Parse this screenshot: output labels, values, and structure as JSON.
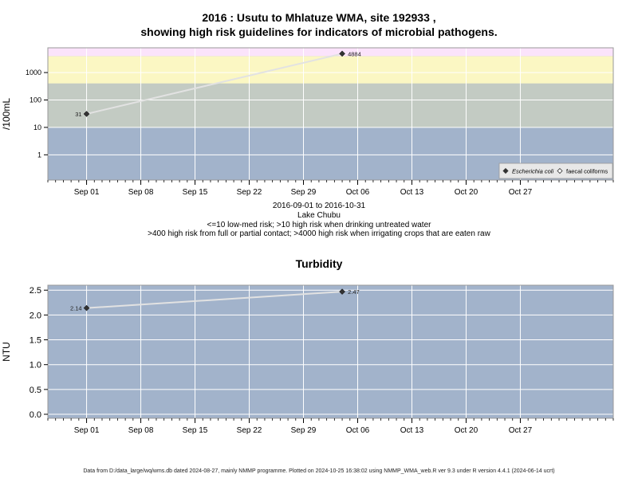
{
  "title_line1": "2016 : Usutu to Mhlatuze WMA, site 192933 ,",
  "title_line2": "showing high risk guidelines for indicators of microbial pathogens.",
  "caption": {
    "date_range": "2016-09-01 to 2016-10-31",
    "site_name": "Lake Chubu",
    "guideline1": "<=10 low-med risk; >10 high risk when drinking untreated water",
    "guideline2": ">400 high risk from full or partial contact; >4000 high risk when irrigating crops that are eaten raw"
  },
  "footer": "Data from D:/data_large/wq/wms.db dated 2024-08-27, mainly NMMP programme. Plotted on 2024-10-25 16:38:02 using NMMP_WMA_web.R ver 9.3 under R version 4.4.1 (2024-06-14 ucrt)",
  "colors": {
    "band_low": "#a2b3cb",
    "band_mid": "#c3cbc3",
    "band_high": "#fbf7c3",
    "band_extreme": "#fbe3fb",
    "line": "#e2e2e2",
    "point": "#333333"
  },
  "chart_data": [
    {
      "type": "line",
      "title": "",
      "xlabel": "",
      "ylabel": "/100mL",
      "y_scale": "log",
      "ylim": [
        0.12,
        8000
      ],
      "x_range": [
        "2016-08-27",
        "2016-11-08"
      ],
      "x_ticks": [
        {
          "date": "2016-09-01",
          "label": "Sep 01"
        },
        {
          "date": "2016-09-08",
          "label": "Sep 08"
        },
        {
          "date": "2016-09-15",
          "label": "Sep 15"
        },
        {
          "date": "2016-09-22",
          "label": "Sep 22"
        },
        {
          "date": "2016-09-29",
          "label": "Sep 29"
        },
        {
          "date": "2016-10-06",
          "label": "Oct 06"
        },
        {
          "date": "2016-10-13",
          "label": "Oct 13"
        },
        {
          "date": "2016-10-20",
          "label": "Oct 20"
        },
        {
          "date": "2016-10-27",
          "label": "Oct 27"
        }
      ],
      "y_ticks": [
        {
          "value": 1,
          "label": "1"
        },
        {
          "value": 10,
          "label": "10"
        },
        {
          "value": 100,
          "label": "100"
        },
        {
          "value": 1000,
          "label": "1000"
        }
      ],
      "risk_bands": [
        {
          "from": 0.12,
          "to": 10,
          "color": "#a2b3cb"
        },
        {
          "from": 10,
          "to": 400,
          "color": "#c3cbc3"
        },
        {
          "from": 400,
          "to": 4000,
          "color": "#fbf7c3"
        },
        {
          "from": 4000,
          "to": 8000,
          "color": "#fbe3fb"
        }
      ],
      "grid": true,
      "legend_position": "bottom-right",
      "series": [
        {
          "name": "Escherichia coli",
          "marker": "filled-diamond",
          "points": [
            {
              "x": "2016-09-01",
              "y": 31,
              "label": "31"
            },
            {
              "x": "2016-10-04",
              "y": 4884,
              "label": "4884"
            }
          ]
        },
        {
          "name": "faecal coliforms",
          "marker": "open-diamond",
          "points": []
        }
      ]
    },
    {
      "type": "line",
      "title": "Turbidity",
      "xlabel": "",
      "ylabel": "NTU",
      "y_scale": "linear",
      "ylim": [
        -0.08,
        2.6
      ],
      "x_range": [
        "2016-08-27",
        "2016-11-08"
      ],
      "x_ticks": [
        {
          "date": "2016-09-01",
          "label": "Sep 01"
        },
        {
          "date": "2016-09-08",
          "label": "Sep 08"
        },
        {
          "date": "2016-09-15",
          "label": "Sep 15"
        },
        {
          "date": "2016-09-22",
          "label": "Sep 22"
        },
        {
          "date": "2016-09-29",
          "label": "Sep 29"
        },
        {
          "date": "2016-10-06",
          "label": "Oct 06"
        },
        {
          "date": "2016-10-13",
          "label": "Oct 13"
        },
        {
          "date": "2016-10-20",
          "label": "Oct 20"
        },
        {
          "date": "2016-10-27",
          "label": "Oct 27"
        }
      ],
      "y_ticks": [
        {
          "value": 0.0,
          "label": "0.0"
        },
        {
          "value": 0.5,
          "label": "0.5"
        },
        {
          "value": 1.0,
          "label": "1.0"
        },
        {
          "value": 1.5,
          "label": "1.5"
        },
        {
          "value": 2.0,
          "label": "2.0"
        },
        {
          "value": 2.5,
          "label": "2.5"
        }
      ],
      "grid": true,
      "series": [
        {
          "name": "",
          "marker": "filled-diamond",
          "points": [
            {
              "x": "2016-09-01",
              "y": 2.14,
              "label": "2.14"
            },
            {
              "x": "2016-10-04",
              "y": 2.47,
              "label": "2.47"
            }
          ]
        }
      ]
    }
  ]
}
